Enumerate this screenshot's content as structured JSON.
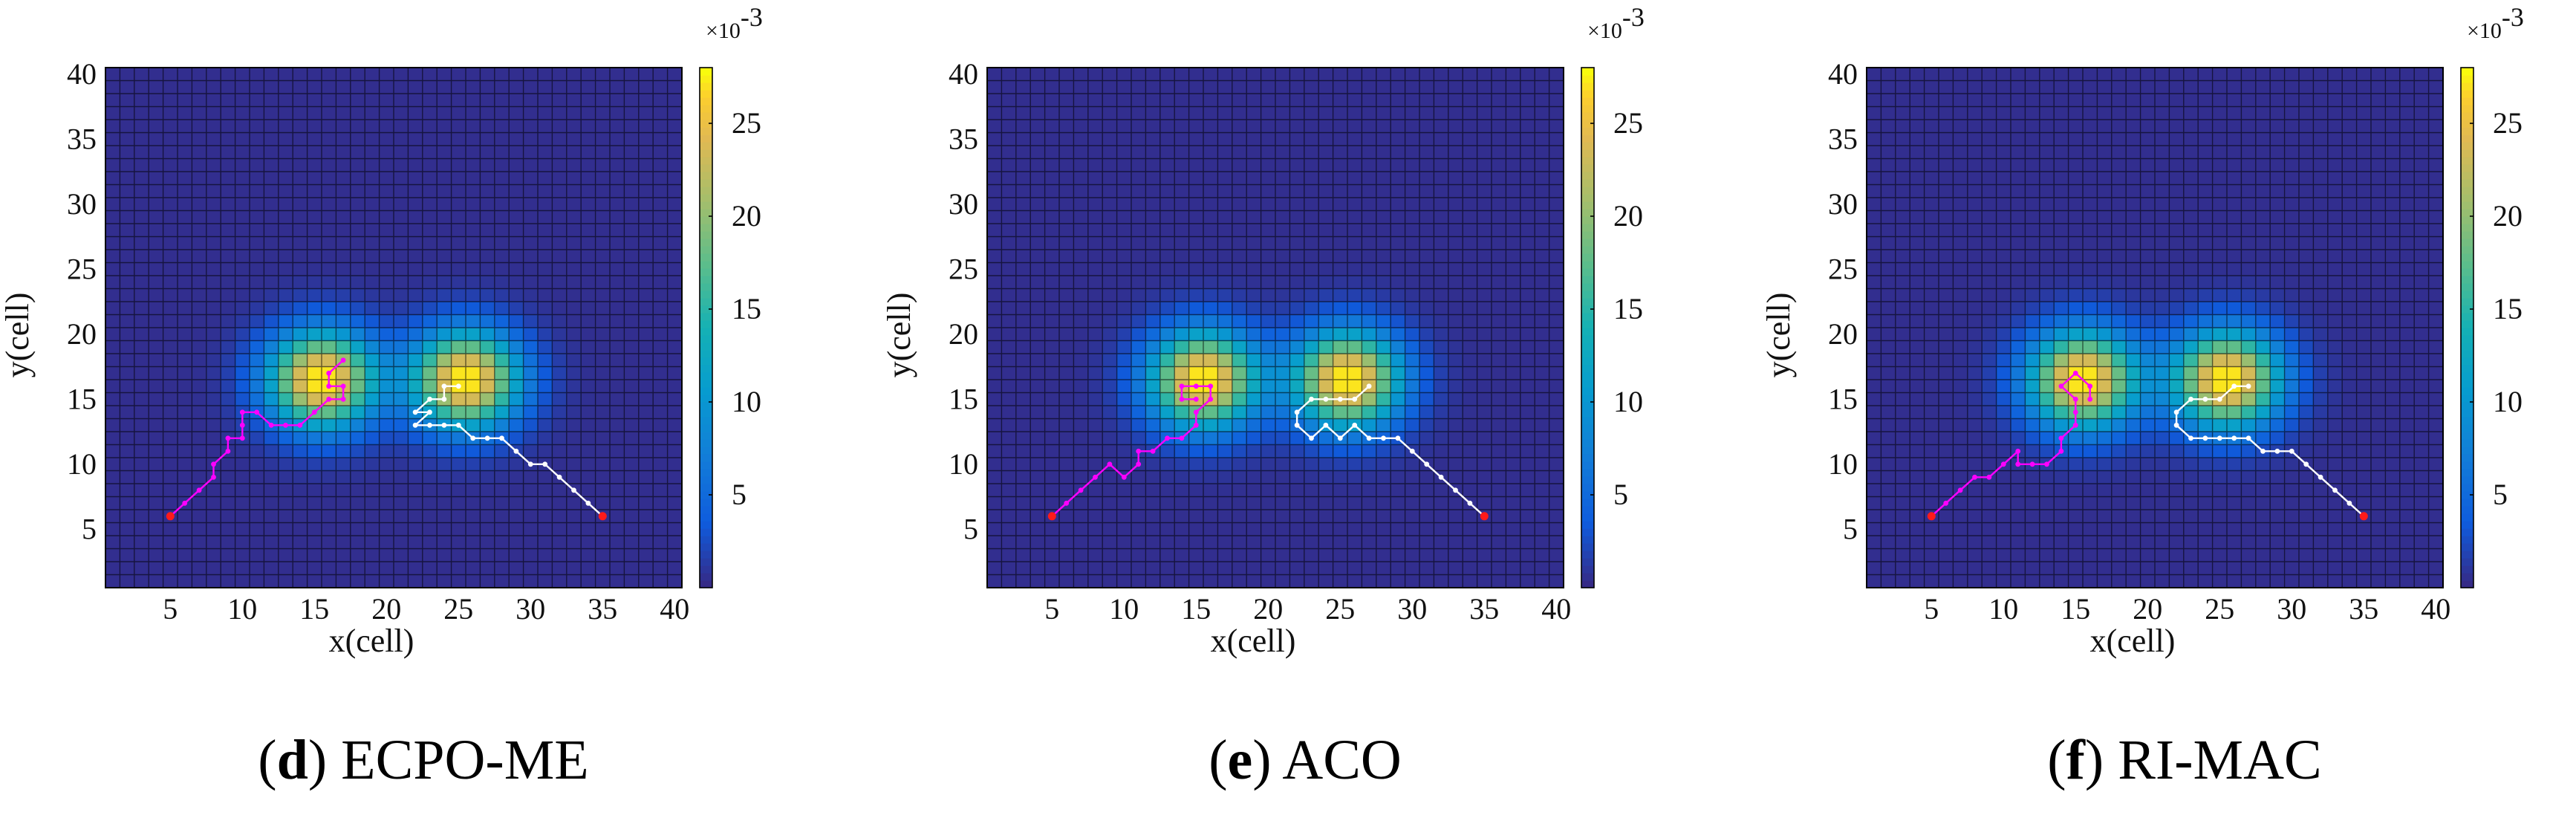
{
  "chart_data": [
    {
      "type": "heatmap",
      "panel_letter": "d",
      "caption_name": "ECPO-ME",
      "xlabel": "x(cell)",
      "ylabel": "y(cell)",
      "xlim": [
        0.5,
        40.5
      ],
      "ylim": [
        0.5,
        40.5
      ],
      "x_ticks": [
        5,
        10,
        15,
        20,
        25,
        30,
        35,
        40
      ],
      "y_ticks": [
        5,
        10,
        15,
        20,
        25,
        30,
        35,
        40
      ],
      "grid": true,
      "colorbar": {
        "ticks": [
          5,
          10,
          15,
          20,
          25
        ],
        "range": [
          0,
          28
        ],
        "multiplier": "×10",
        "exponent": "-3"
      },
      "sources": [
        {
          "x": 15.5,
          "y": 16.5,
          "peak": 28,
          "sigma": 2.6
        },
        {
          "x": 25.5,
          "y": 16.5,
          "peak": 28,
          "sigma": 2.6
        }
      ],
      "paths": [
        {
          "color": "#ff00ff",
          "points": [
            [
              5,
              6
            ],
            [
              6,
              7
            ],
            [
              7,
              8
            ],
            [
              8,
              9
            ],
            [
              8,
              10
            ],
            [
              9,
              11
            ],
            [
              9,
              12
            ],
            [
              10,
              12
            ],
            [
              10,
              13
            ],
            [
              10,
              14
            ],
            [
              11,
              14
            ],
            [
              12,
              13
            ],
            [
              13,
              13
            ],
            [
              14,
              13
            ],
            [
              15,
              14
            ],
            [
              16,
              15
            ],
            [
              17,
              15
            ],
            [
              17,
              16
            ],
            [
              16,
              16
            ],
            [
              16,
              17
            ],
            [
              17,
              18
            ]
          ]
        },
        {
          "color": "#ffffff",
          "points": [
            [
              35,
              6
            ],
            [
              34,
              7
            ],
            [
              33,
              8
            ],
            [
              32,
              9
            ],
            [
              31,
              10
            ],
            [
              30,
              10
            ],
            [
              29,
              11
            ],
            [
              28,
              12
            ],
            [
              27,
              12
            ],
            [
              26,
              12
            ],
            [
              25,
              13
            ],
            [
              24,
              13
            ],
            [
              23,
              13
            ],
            [
              22,
              13
            ],
            [
              23,
              14
            ],
            [
              22,
              14
            ],
            [
              23,
              15
            ],
            [
              24,
              15
            ],
            [
              24,
              16
            ],
            [
              25,
              16
            ]
          ]
        }
      ]
    },
    {
      "type": "heatmap",
      "panel_letter": "e",
      "caption_name": "ACO",
      "xlabel": "x(cell)",
      "ylabel": "y(cell)",
      "xlim": [
        0.5,
        40.5
      ],
      "ylim": [
        0.5,
        40.5
      ],
      "x_ticks": [
        5,
        10,
        15,
        20,
        25,
        30,
        35,
        40
      ],
      "y_ticks": [
        5,
        10,
        15,
        20,
        25,
        30,
        35,
        40
      ],
      "grid": true,
      "colorbar": {
        "ticks": [
          5,
          10,
          15,
          20,
          25
        ],
        "range": [
          0,
          28
        ],
        "multiplier": "×10",
        "exponent": "-3"
      },
      "sources": [
        {
          "x": 15.5,
          "y": 16.5,
          "peak": 28,
          "sigma": 2.6
        },
        {
          "x": 25.5,
          "y": 16.5,
          "peak": 28,
          "sigma": 2.6
        }
      ],
      "paths": [
        {
          "color": "#ff00ff",
          "points": [
            [
              5,
              6
            ],
            [
              6,
              7
            ],
            [
              7,
              8
            ],
            [
              8,
              9
            ],
            [
              9,
              10
            ],
            [
              10,
              9
            ],
            [
              11,
              10
            ],
            [
              11,
              11
            ],
            [
              12,
              11
            ],
            [
              13,
              12
            ],
            [
              14,
              12
            ],
            [
              15,
              13
            ],
            [
              15,
              14
            ],
            [
              16,
              15
            ],
            [
              16,
              16
            ],
            [
              15,
              16
            ],
            [
              14,
              16
            ],
            [
              14,
              15
            ],
            [
              15,
              15
            ]
          ]
        },
        {
          "color": "#ffffff",
          "points": [
            [
              35,
              6
            ],
            [
              34,
              7
            ],
            [
              33,
              8
            ],
            [
              32,
              9
            ],
            [
              31,
              10
            ],
            [
              30,
              11
            ],
            [
              29,
              12
            ],
            [
              28,
              12
            ],
            [
              27,
              12
            ],
            [
              26,
              13
            ],
            [
              25,
              12
            ],
            [
              24,
              13
            ],
            [
              23,
              12
            ],
            [
              22,
              13
            ],
            [
              22,
              14
            ],
            [
              23,
              15
            ],
            [
              24,
              15
            ],
            [
              25,
              15
            ],
            [
              26,
              15
            ],
            [
              27,
              16
            ]
          ]
        }
      ]
    },
    {
      "type": "heatmap",
      "panel_letter": "f",
      "caption_name": "RI-MAC",
      "xlabel": "x(cell)",
      "ylabel": "y(cell)",
      "xlim": [
        0.5,
        40.5
      ],
      "ylim": [
        0.5,
        40.5
      ],
      "x_ticks": [
        5,
        10,
        15,
        20,
        25,
        30,
        35,
        40
      ],
      "y_ticks": [
        5,
        10,
        15,
        20,
        25,
        30,
        35,
        40
      ],
      "grid": true,
      "colorbar": {
        "ticks": [
          5,
          10,
          15,
          20,
          25
        ],
        "range": [
          0,
          28
        ],
        "multiplier": "×10",
        "exponent": "-3"
      },
      "sources": [
        {
          "x": 15.5,
          "y": 16.5,
          "peak": 28,
          "sigma": 2.6
        },
        {
          "x": 25.5,
          "y": 16.5,
          "peak": 28,
          "sigma": 2.6
        }
      ],
      "paths": [
        {
          "color": "#ff00ff",
          "points": [
            [
              5,
              6
            ],
            [
              6,
              7
            ],
            [
              7,
              8
            ],
            [
              8,
              9
            ],
            [
              9,
              9
            ],
            [
              10,
              10
            ],
            [
              11,
              11
            ],
            [
              11,
              10
            ],
            [
              12,
              10
            ],
            [
              13,
              10
            ],
            [
              14,
              11
            ],
            [
              14,
              12
            ],
            [
              15,
              13
            ],
            [
              15,
              14
            ],
            [
              15,
              15
            ],
            [
              14,
              16
            ],
            [
              15,
              17
            ],
            [
              16,
              16
            ],
            [
              16,
              15
            ]
          ]
        },
        {
          "color": "#ffffff",
          "points": [
            [
              35,
              6
            ],
            [
              34,
              7
            ],
            [
              33,
              8
            ],
            [
              32,
              9
            ],
            [
              31,
              10
            ],
            [
              30,
              11
            ],
            [
              29,
              11
            ],
            [
              28,
              11
            ],
            [
              27,
              12
            ],
            [
              26,
              12
            ],
            [
              25,
              12
            ],
            [
              24,
              12
            ],
            [
              23,
              12
            ],
            [
              22,
              13
            ],
            [
              22,
              14
            ],
            [
              23,
              15
            ],
            [
              24,
              15
            ],
            [
              25,
              15
            ],
            [
              26,
              16
            ],
            [
              27,
              16
            ]
          ]
        }
      ]
    }
  ]
}
